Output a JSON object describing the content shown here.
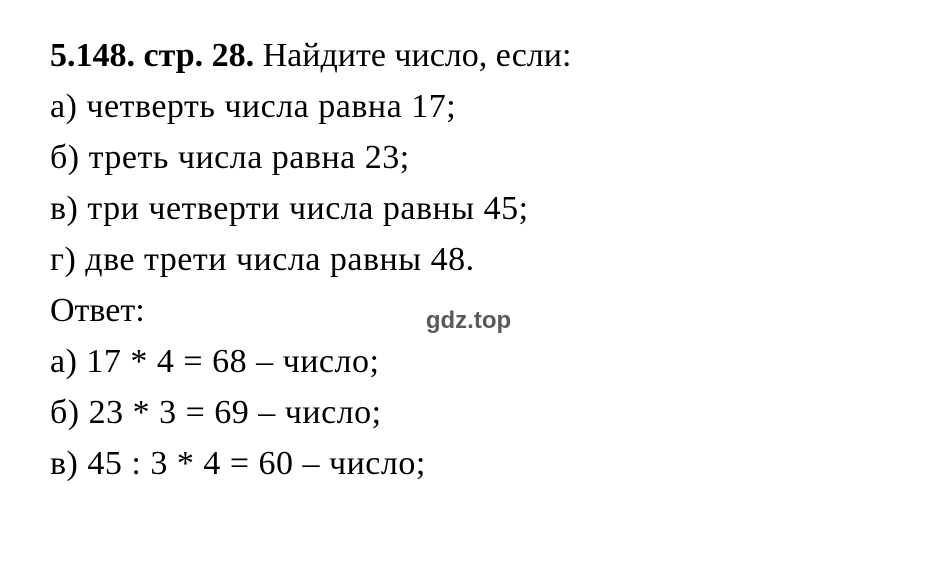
{
  "problem": {
    "number": "5.148.",
    "page_ref": "стр. 28.",
    "task_intro": "Найдите число, если:",
    "items": [
      {
        "label": "а)",
        "text": "четверть числа равна 17;"
      },
      {
        "label": "б)",
        "text": "треть числа равна 23;"
      },
      {
        "label": "в)",
        "text": "три четверти числа равны 45;"
      },
      {
        "label": "г)",
        "text": "две трети числа равны 48."
      }
    ],
    "answer_label": "Ответ:",
    "answers": [
      {
        "label": "а)",
        "text": "17 * 4 = 68 – число;"
      },
      {
        "label": "б)",
        "text": "23 * 3 = 69 – число;"
      },
      {
        "label": "в)",
        "text": "45 : 3 * 4 = 60 – число;"
      }
    ]
  },
  "watermark": "gdz.top",
  "styling": {
    "background_color": "#ffffff",
    "text_color": "#000000",
    "watermark_color": "#5a5a5a",
    "font_family": "Times New Roman",
    "font_size_pt": 26,
    "line_height": 1.5,
    "bold_weight": "bold"
  }
}
